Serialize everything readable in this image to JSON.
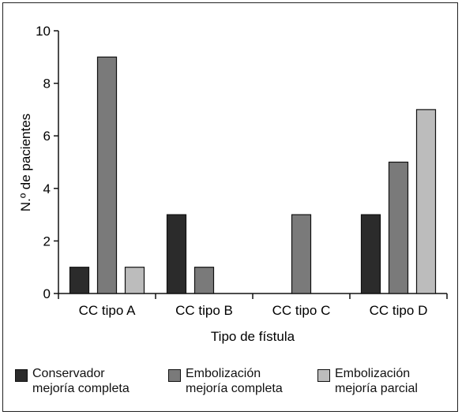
{
  "chart_data": {
    "type": "bar",
    "categories": [
      "CC tipo A",
      "CC tipo B",
      "CC tipo C",
      "CC tipo D"
    ],
    "series": [
      {
        "name": "Conservador\nmejoría completa",
        "color": "#2b2b2b",
        "values": [
          1,
          3,
          0,
          3
        ]
      },
      {
        "name": "Embolización\nmejoría completa",
        "color": "#7a7a7a",
        "values": [
          9,
          1,
          3,
          5
        ]
      },
      {
        "name": "Embolización\nmejoría parcial",
        "color": "#bcbcbc",
        "values": [
          1,
          0,
          0,
          7
        ]
      }
    ],
    "xlabel": "Tipo de fístula",
    "ylabel": "N.º de pacientes",
    "ylim": [
      0,
      10
    ],
    "yticks": [
      "0",
      "2",
      "4",
      "6",
      "8",
      "10"
    ],
    "grid": false,
    "legend_position": "bottom"
  }
}
